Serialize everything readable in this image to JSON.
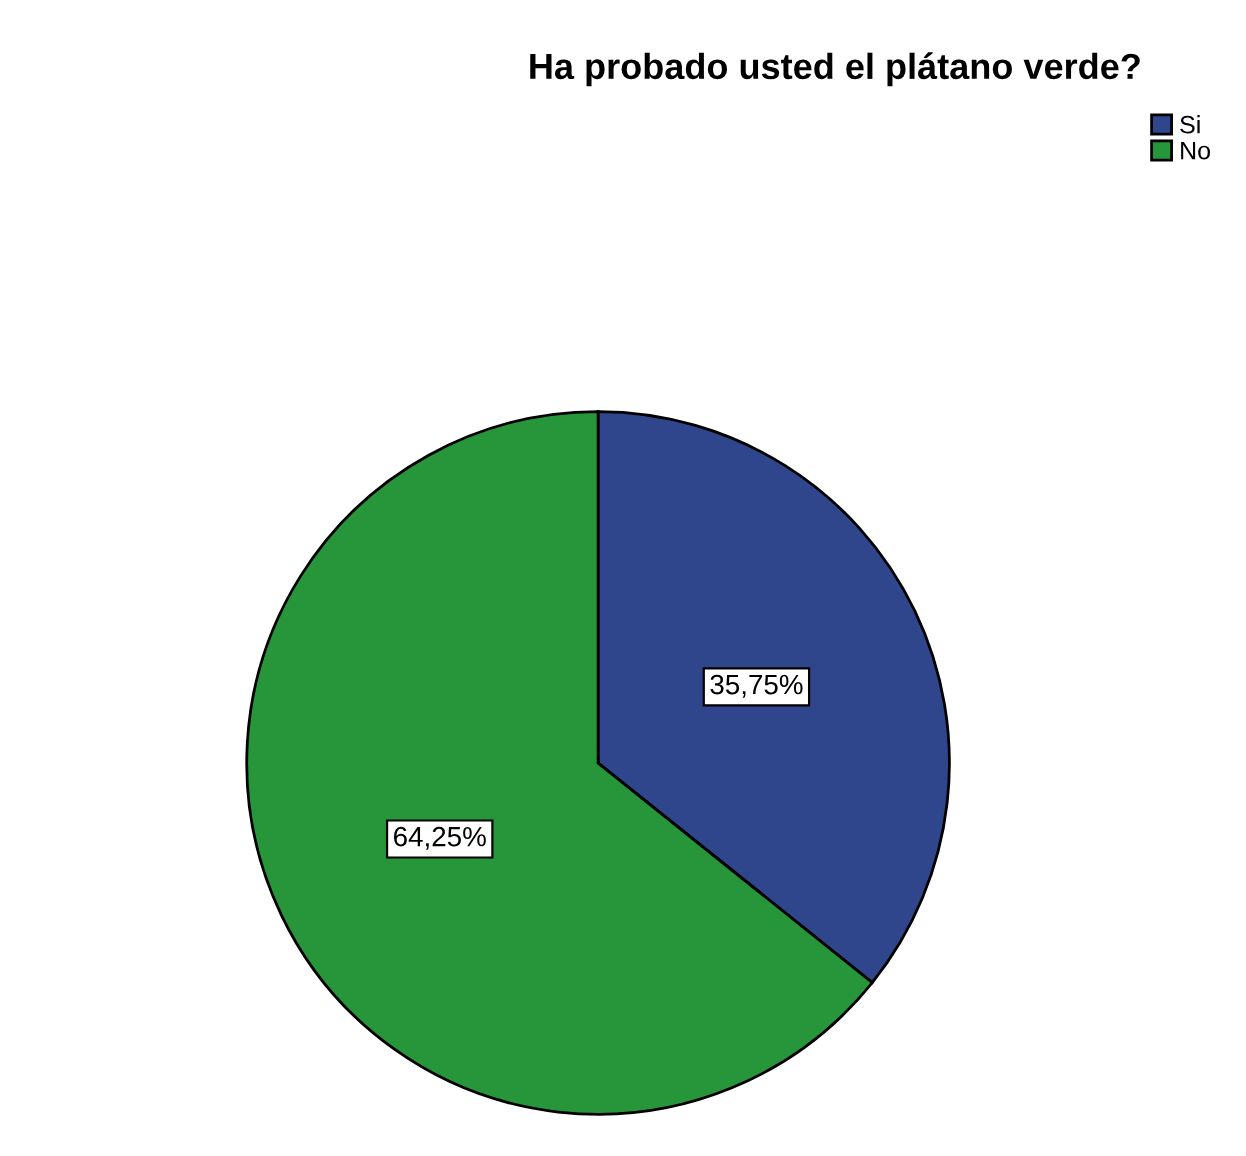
{
  "chart_data": {
    "type": "pie",
    "title": "Ha probado usted el plátano verde?",
    "categories": [
      "Si",
      "No"
    ],
    "values": [
      35.75,
      64.25
    ],
    "colors": [
      "#2f468c",
      "#27963a"
    ],
    "value_labels": [
      "35,75%",
      "64,25%"
    ],
    "legend": "top right"
  }
}
